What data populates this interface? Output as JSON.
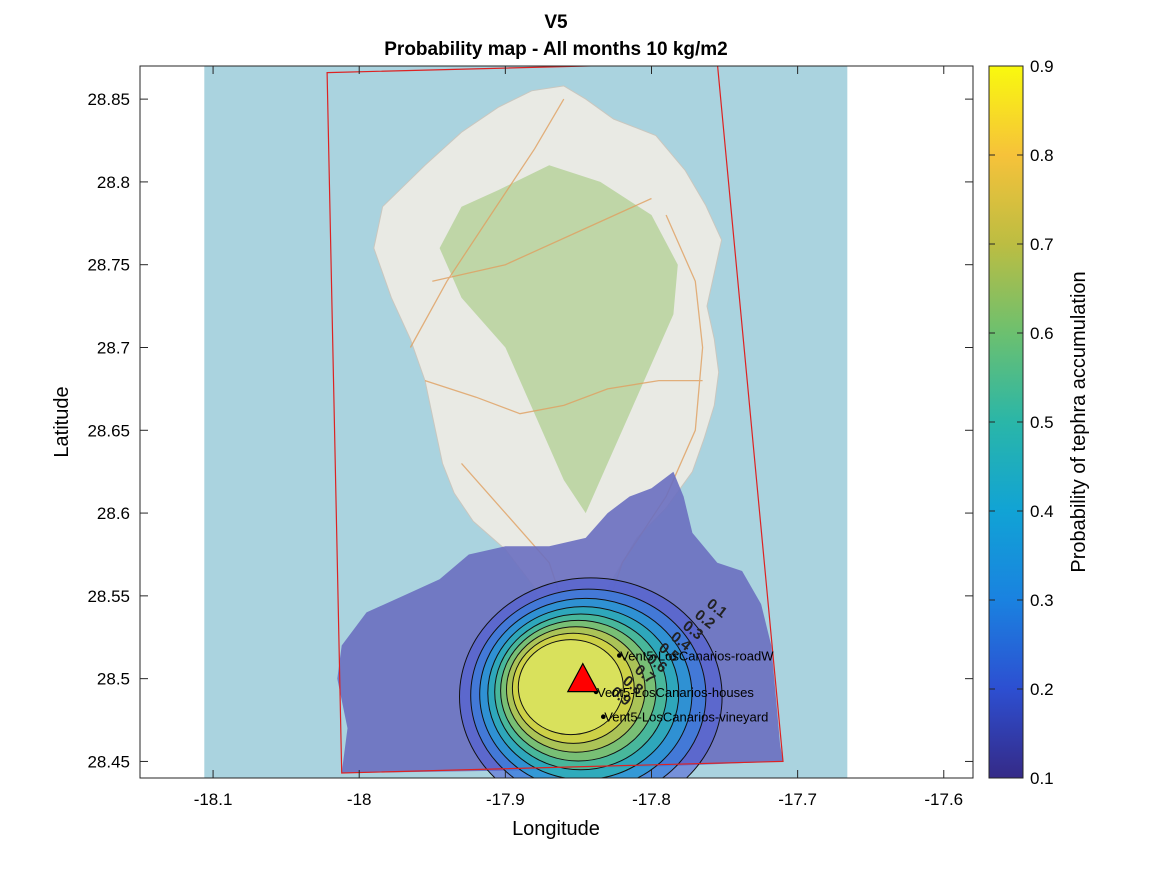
{
  "chart_data": {
    "type": "heatmap",
    "title": "V5",
    "subtitle": "Probability map - All months 10 kg/m2",
    "xlabel": "Longitude",
    "ylabel": "Latitude",
    "xlim": [
      -18.15,
      -17.58
    ],
    "ylim": [
      28.44,
      28.87
    ],
    "xticks": [
      -18.1,
      -18.0,
      -17.9,
      -17.8,
      -17.7,
      -17.6
    ],
    "xtick_labels": [
      "-18.1",
      "-18",
      "-17.9",
      "-17.8",
      "-17.7",
      "-17.6"
    ],
    "yticks": [
      28.45,
      28.5,
      28.55,
      28.6,
      28.65,
      28.7,
      28.75,
      28.8,
      28.85
    ],
    "ytick_labels": [
      "28.45",
      "28.5",
      "28.55",
      "28.6",
      "28.65",
      "28.7",
      "28.75",
      "28.8",
      "28.85"
    ],
    "colorbar": {
      "label": "Probability of tephra accumulation",
      "range": [
        0.1,
        0.9
      ],
      "ticks": [
        0.1,
        0.2,
        0.3,
        0.4,
        0.5,
        0.6,
        0.7,
        0.8,
        0.9
      ],
      "tick_labels": [
        "0.1",
        "0.2",
        "0.3",
        "0.4",
        "0.5",
        "0.6",
        "0.7",
        "0.8",
        "0.9"
      ],
      "colormap": "parula"
    },
    "basemap_extent": {
      "lon": [
        -18.106,
        -17.666
      ],
      "lat": [
        28.44,
        28.87
      ]
    },
    "grid_domain_corners": [
      [
        -18.022,
        28.866
      ],
      [
        -17.755,
        28.872
      ],
      [
        -17.71,
        28.45
      ],
      [
        -18.012,
        28.443
      ]
    ],
    "vent": {
      "lon": -17.847,
      "lat": 28.5,
      "marker": "red-triangle"
    },
    "contour_levels": [
      0.1,
      0.2,
      0.3,
      0.4,
      0.5,
      0.6,
      0.7,
      0.8,
      0.9
    ],
    "contour_labels": [
      "0.1",
      "0.2",
      "0.3",
      "0.4",
      "0.5",
      "0.6",
      "0.7",
      "0.8",
      "0.9"
    ],
    "sites": [
      {
        "name": "Vent5-LosCanarios-roadW",
        "lon": -17.822,
        "lat": 28.514
      },
      {
        "name": "Vent5-LosCanarios-houses",
        "lon": -17.838,
        "lat": 28.492
      },
      {
        "name": "Vent5-LosCanarios-vineyard",
        "lon": -17.833,
        "lat": 28.477
      }
    ],
    "grid": false,
    "colors": {
      "sea": "#aad3df",
      "land": "#e9eae4",
      "vegetation": "#b7d29c",
      "low_probability": "#6a6fc0",
      "domain_border": "#dd2222",
      "vent": "#ff0000"
    }
  }
}
